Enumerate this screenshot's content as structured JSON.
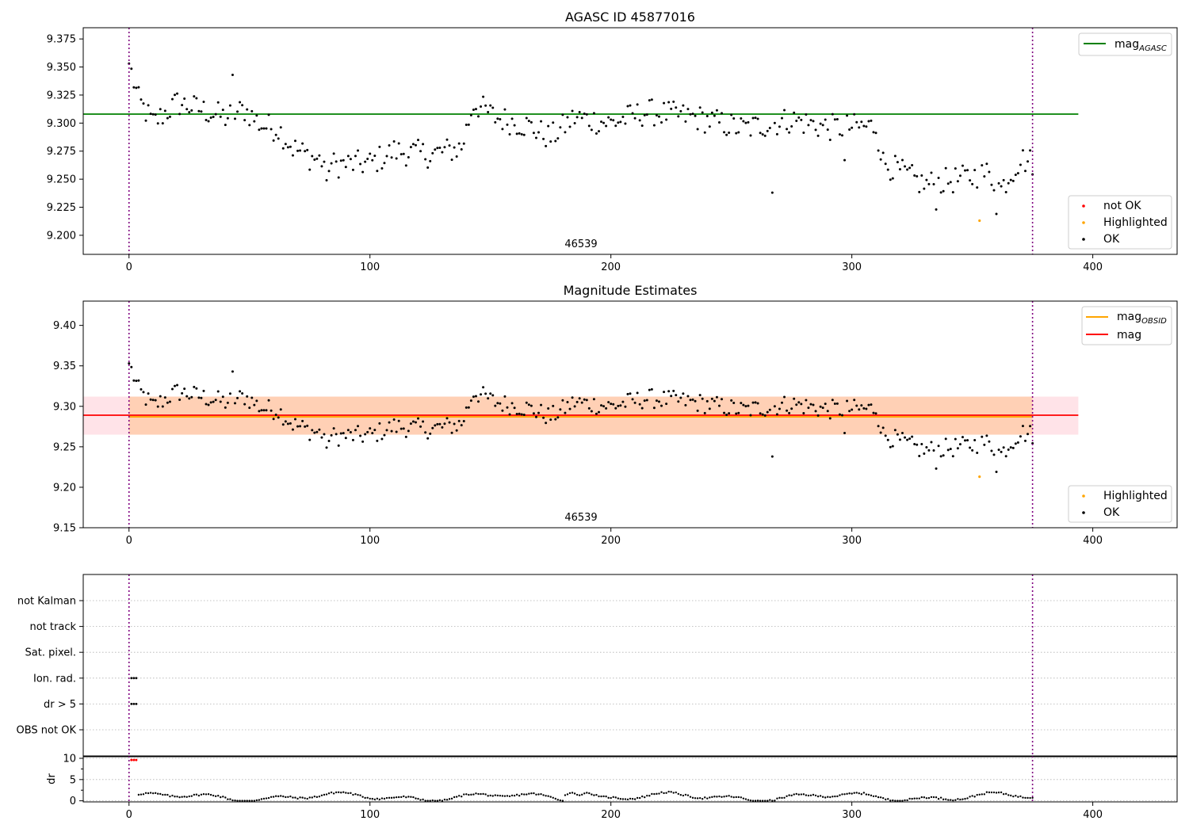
{
  "chart_data": [
    {
      "type": "scatter",
      "title": "AGASC ID 45877016",
      "xlim": [
        -19,
        435
      ],
      "ylim": [
        9.183,
        9.385
      ],
      "xticks": [
        0,
        100,
        200,
        300,
        400
      ],
      "yticks": [
        9.2,
        9.225,
        9.25,
        9.275,
        9.3,
        9.325,
        9.35,
        9.375
      ],
      "ytick_labels": [
        "9.200",
        "9.225",
        "9.250",
        "9.275",
        "9.300",
        "9.325",
        "9.350",
        "9.375"
      ],
      "vlines": [
        0,
        375
      ],
      "obsid_label": {
        "text": "46539",
        "x": 187
      },
      "hlines": [
        {
          "name": "mag_AGASC",
          "y": 9.308,
          "color": "#008000",
          "xmax": 394
        }
      ],
      "legend_top": [
        {
          "label": "mag",
          "sub": "AGASC",
          "color": "#008000"
        }
      ],
      "legend_bottom": [
        {
          "label": "not OK",
          "color": "#ff0000"
        },
        {
          "label": "Highlighted",
          "color": "#ffa500"
        },
        {
          "label": "OK",
          "color": "#000000"
        }
      ],
      "highlighted": [
        {
          "x": 353,
          "y": 9.213
        }
      ],
      "grid": false,
      "legend_position": "upper-right / lower-right"
    },
    {
      "type": "scatter",
      "title": "Magnitude Estimates",
      "xlim": [
        -19,
        435
      ],
      "ylim": [
        9.15,
        9.43
      ],
      "xticks": [
        0,
        100,
        200,
        300,
        400
      ],
      "yticks": [
        9.15,
        9.2,
        9.25,
        9.3,
        9.35,
        9.4
      ],
      "ytick_labels": [
        "9.15",
        "9.20",
        "9.25",
        "9.30",
        "9.35",
        "9.40"
      ],
      "vlines": [
        0,
        375
      ],
      "obsid_label": {
        "text": "46539",
        "x": 187
      },
      "band_outer": {
        "y0": 9.265,
        "y1": 9.312,
        "x0": -19,
        "x1": 394,
        "color": "#ffc0cb"
      },
      "band_inner": {
        "y0": 9.265,
        "y1": 9.312,
        "x0": 0,
        "x1": 375,
        "color": "#ffc8a0"
      },
      "hlines": [
        {
          "name": "mag",
          "y": 9.289,
          "color": "#ff0000",
          "xmin": -19,
          "xmax": 394
        },
        {
          "name": "mag_OBSID",
          "y": 9.287,
          "color": "#ffa500",
          "xmin": 0,
          "xmax": 375
        }
      ],
      "legend_top": [
        {
          "label": "mag",
          "sub": "OBSID",
          "color": "#ffa500"
        },
        {
          "label": "mag",
          "sub": "",
          "color": "#ff0000"
        }
      ],
      "legend_bottom": [
        {
          "label": "Highlighted",
          "color": "#ffa500"
        },
        {
          "label": "OK",
          "color": "#000000"
        }
      ],
      "highlighted": [
        {
          "x": 353,
          "y": 9.213
        }
      ],
      "grid": false
    },
    {
      "type": "scatter",
      "title": "",
      "xlim": [
        -19,
        435
      ],
      "xticks": [
        0,
        100,
        200,
        300,
        400
      ],
      "vlines": [
        0,
        375
      ],
      "flag_categories": [
        "OBS not OK",
        "dr > 5",
        "Ion. rad.",
        "Sat. pixel.",
        "not track",
        "not Kalman"
      ],
      "flag_points": [
        {
          "category": "Ion. rad.",
          "x": [
            1,
            2,
            3
          ]
        },
        {
          "category": "dr > 5",
          "x": [
            1,
            2,
            3
          ]
        }
      ],
      "dr_ylabel": "dr",
      "dr_yticks": [
        0,
        5,
        10
      ],
      "dr_ylim": [
        -1,
        10
      ],
      "dr_red_x": [
        1,
        2,
        3
      ],
      "dr_red_y": 9.6,
      "grid": true
    }
  ]
}
